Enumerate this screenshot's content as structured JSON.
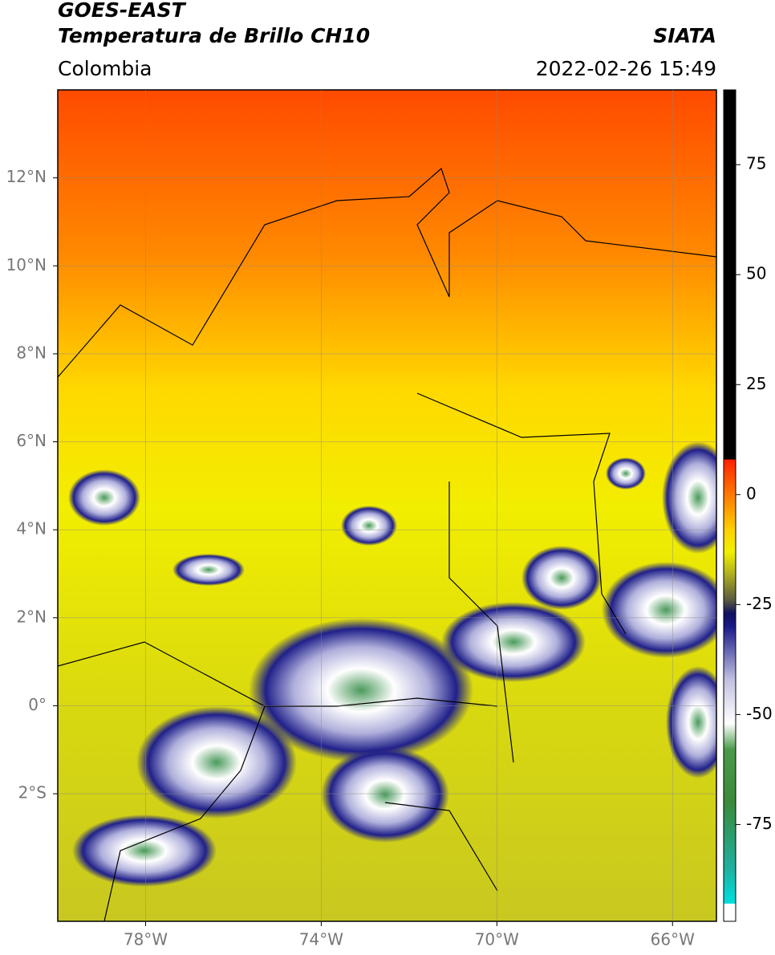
{
  "header": {
    "title": "GOES-EAST",
    "subtitle": "Temperatura de Brillo CH10",
    "source": "SIATA",
    "region": "Colombia",
    "timestamp": "2022-02-26 15:49"
  },
  "map": {
    "xlim": [
      -80,
      -65
    ],
    "ylim": [
      -4.9,
      14
    ],
    "xticks": [
      {
        "value": -78,
        "label": "78°W"
      },
      {
        "value": -74,
        "label": "74°W"
      },
      {
        "value": -70,
        "label": "70°W"
      },
      {
        "value": -66,
        "label": "66°W"
      }
    ],
    "yticks": [
      {
        "value": 12,
        "label": "12°N"
      },
      {
        "value": 10,
        "label": "10°N"
      },
      {
        "value": 8,
        "label": "8°N"
      },
      {
        "value": 6,
        "label": "6°N"
      },
      {
        "value": 4,
        "label": "4°N"
      },
      {
        "value": 2,
        "label": "2°N"
      },
      {
        "value": 0,
        "label": "0°"
      },
      {
        "value": -2,
        "label": "2°S"
      }
    ],
    "grid": true
  },
  "colorbar": {
    "lim": [
      -97,
      92
    ],
    "ticks": [
      75,
      50,
      25,
      0,
      -25,
      -50,
      -75
    ],
    "stops": [
      {
        "value": -97,
        "color": "#ffffff"
      },
      {
        "value": -93,
        "color": "#ffffff"
      },
      {
        "value": -93,
        "color": "#00e0e0"
      },
      {
        "value": -85,
        "color": "#20b0a0"
      },
      {
        "value": -70,
        "color": "#3a8a3a"
      },
      {
        "value": -58,
        "color": "#4a9a4a"
      },
      {
        "value": -52,
        "color": "#ffffff"
      },
      {
        "value": -42,
        "color": "#c0c0e0"
      },
      {
        "value": -30,
        "color": "#1a1a8a"
      },
      {
        "value": -27,
        "color": "#101060"
      },
      {
        "value": -24,
        "color": "#5a5a40"
      },
      {
        "value": -18,
        "color": "#b0b020"
      },
      {
        "value": -13,
        "color": "#f0f000"
      },
      {
        "value": -8,
        "color": "#ffd000"
      },
      {
        "value": -2,
        "color": "#ff9000"
      },
      {
        "value": 8,
        "color": "#ff2000"
      },
      {
        "value": 8,
        "color": "#000000"
      },
      {
        "value": 92,
        "color": "#000000"
      }
    ]
  }
}
